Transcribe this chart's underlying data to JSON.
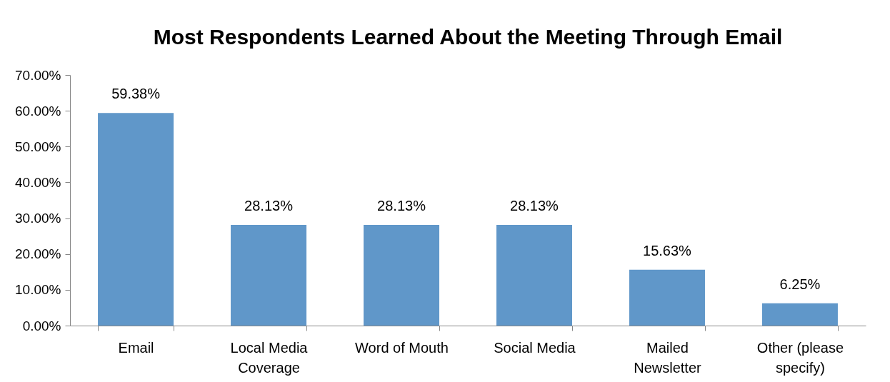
{
  "chart_data": {
    "type": "bar",
    "title": "Most Respondents Learned About the Meeting Through Email",
    "categories": [
      "Email",
      "Local Media Coverage",
      "Word of Mouth",
      "Social Media",
      "Mailed Newsletter",
      "Other (please specify)"
    ],
    "values": [
      59.38,
      28.13,
      28.13,
      28.13,
      15.63,
      6.25
    ],
    "value_labels": [
      "59.38%",
      "28.13%",
      "28.13%",
      "28.13%",
      "15.63%",
      "6.25%"
    ],
    "color": "#6097c9",
    "ylim": [
      0,
      70
    ],
    "grid": false,
    "yticks": [
      {
        "value": 0,
        "label": "0.00%"
      },
      {
        "value": 10,
        "label": "10.00%"
      },
      {
        "value": 20,
        "label": "20.00%"
      },
      {
        "value": 30,
        "label": "30.00%"
      },
      {
        "value": 40,
        "label": "40.00%"
      },
      {
        "value": 50,
        "label": "50.00%"
      },
      {
        "value": 60,
        "label": "60.00%"
      },
      {
        "value": 70,
        "label": "70.00%"
      }
    ]
  }
}
